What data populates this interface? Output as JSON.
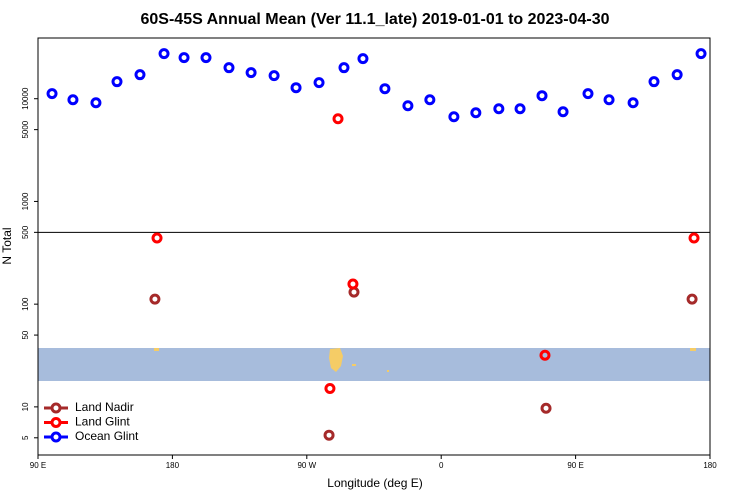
{
  "chart_data": {
    "type": "scatter",
    "title": "60S-45S Annual Mean (Ver 11.1_late)   2019-01-01 to 2023-04-30",
    "x_label": "Longitude (deg E)",
    "y_label": "N Total",
    "xlim": [
      90,
      540
    ],
    "xticks": [
      {
        "value": 90,
        "label": "90 E"
      },
      180,
      {
        "value": 270,
        "label": "90 W"
      },
      {
        "value": 360,
        "label": "0"
      },
      {
        "value": 450,
        "label": "90 E"
      },
      {
        "value": 540,
        "label": "180"
      }
    ],
    "ylim": [
      3.4,
      39000
    ],
    "log_y": true,
    "yticks": [
      5,
      10,
      50,
      100,
      500,
      1000,
      5000,
      10000
    ],
    "hlines": [
      500
    ],
    "legend": "lower left",
    "series": [
      {
        "name": "Land Nadir",
        "color": "#a52a2a",
        "x": [
          168.3,
          528,
          301.6,
          430.2,
          284.9
        ],
        "values": [
          112,
          112,
          131,
          9.7,
          5.3
        ]
      },
      {
        "name": "Land Glint",
        "color": "#ff0000",
        "x": [
          290.9,
          169.7,
          529.3,
          300.9,
          429.5,
          285.5
        ],
        "values": [
          6380,
          441,
          441,
          157,
          31.8,
          15.1
        ]
      },
      {
        "name": "Ocean Glint",
        "color": "#0000ff",
        "x": [
          99.4,
          113.4,
          128.8,
          142.9,
          158.3,
          174.4,
          187.8,
          202.5,
          217.9,
          232.7,
          248.1,
          262.8,
          278.2,
          294.9,
          307.6,
          322.3,
          337.7,
          352.4,
          368.5,
          383.2,
          398.6,
          412.8,
          427.5,
          441.6,
          458.3,
          472.4,
          488.5,
          502.5,
          518,
          534
        ],
        "values": [
          11200,
          9780,
          9140,
          14650,
          17140,
          27500,
          25100,
          25100,
          20050,
          17950,
          16770,
          12800,
          14330,
          20050,
          24550,
          12520,
          8550,
          9780,
          6670,
          7300,
          7990,
          7990,
          10700,
          7470,
          11200,
          9780,
          9140,
          14650,
          17140,
          27500
        ]
      }
    ]
  }
}
